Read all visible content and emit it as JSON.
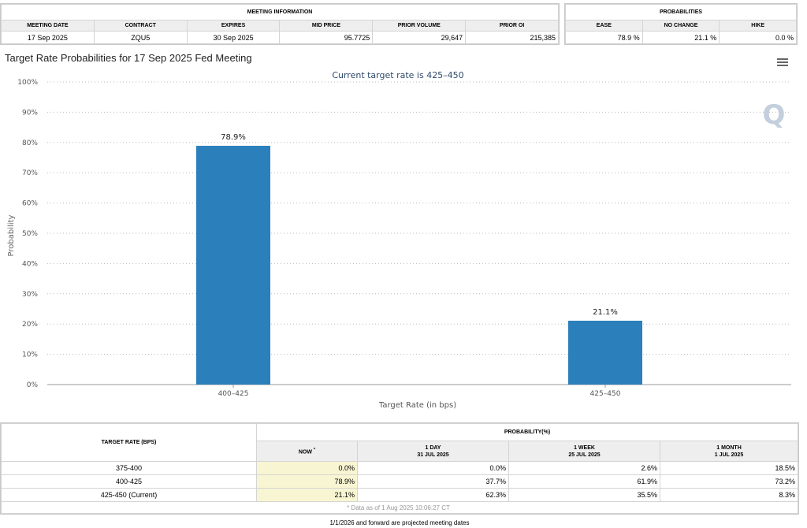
{
  "meeting_info": {
    "group_title": "MEETING INFORMATION",
    "headers": [
      "MEETING DATE",
      "CONTRACT",
      "EXPIRES",
      "MID PRICE",
      "PRIOR VOLUME",
      "PRIOR OI"
    ],
    "values": [
      "17 Sep 2025",
      "ZQU5",
      "30 Sep 2025",
      "95.7725",
      "29,647",
      "215,385"
    ]
  },
  "probabilities": {
    "group_title": "PROBABILITIES",
    "headers": [
      "EASE",
      "NO CHANGE",
      "HIKE"
    ],
    "values": [
      "78.9 %",
      "21.1 %",
      "0.0 %"
    ]
  },
  "chart_title": "Target Rate Probabilities for 17 Sep 2025 Fed Meeting",
  "chart_data": {
    "type": "bar",
    "subtitle": "Current target rate is 425–450",
    "categories": [
      "400–425",
      "425–450"
    ],
    "values": [
      78.9,
      21.1
    ],
    "data_labels": [
      "78.9%",
      "21.1%"
    ],
    "xlabel": "Target Rate (in bps)",
    "ylabel": "Probability",
    "ylim": [
      0,
      100
    ],
    "y_ticks": [
      "0%",
      "10%",
      "20%",
      "30%",
      "40%",
      "50%",
      "60%",
      "70%",
      "80%",
      "90%",
      "100%"
    ],
    "grid": true,
    "bar_color": "#2b7fbb",
    "watermark": "Q"
  },
  "prob_table": {
    "col1_header": "TARGET RATE (BPS)",
    "group_header": "PROBABILITY(%)",
    "now_header": "NOW",
    "now_marker": "*",
    "sub_headers": [
      {
        "line1": "1 DAY",
        "line2": "31 JUL 2025"
      },
      {
        "line1": "1 WEEK",
        "line2": "25 JUL 2025"
      },
      {
        "line1": "1 MONTH",
        "line2": "1 JUL 2025"
      }
    ],
    "rows": [
      {
        "rate": "375-400",
        "now": "0.0%",
        "day": "0.0%",
        "week": "2.6%",
        "month": "18.5%"
      },
      {
        "rate": "400-425",
        "now": "78.9%",
        "day": "37.7%",
        "week": "61.9%",
        "month": "73.2%"
      },
      {
        "rate": "425-450 (Current)",
        "now": "21.1%",
        "day": "62.3%",
        "week": "35.5%",
        "month": "8.3%"
      }
    ],
    "note": "* Data as of 1 Aug 2025 10:06:27 CT"
  },
  "footer_note": "1/1/2026 and forward are projected meeting dates"
}
